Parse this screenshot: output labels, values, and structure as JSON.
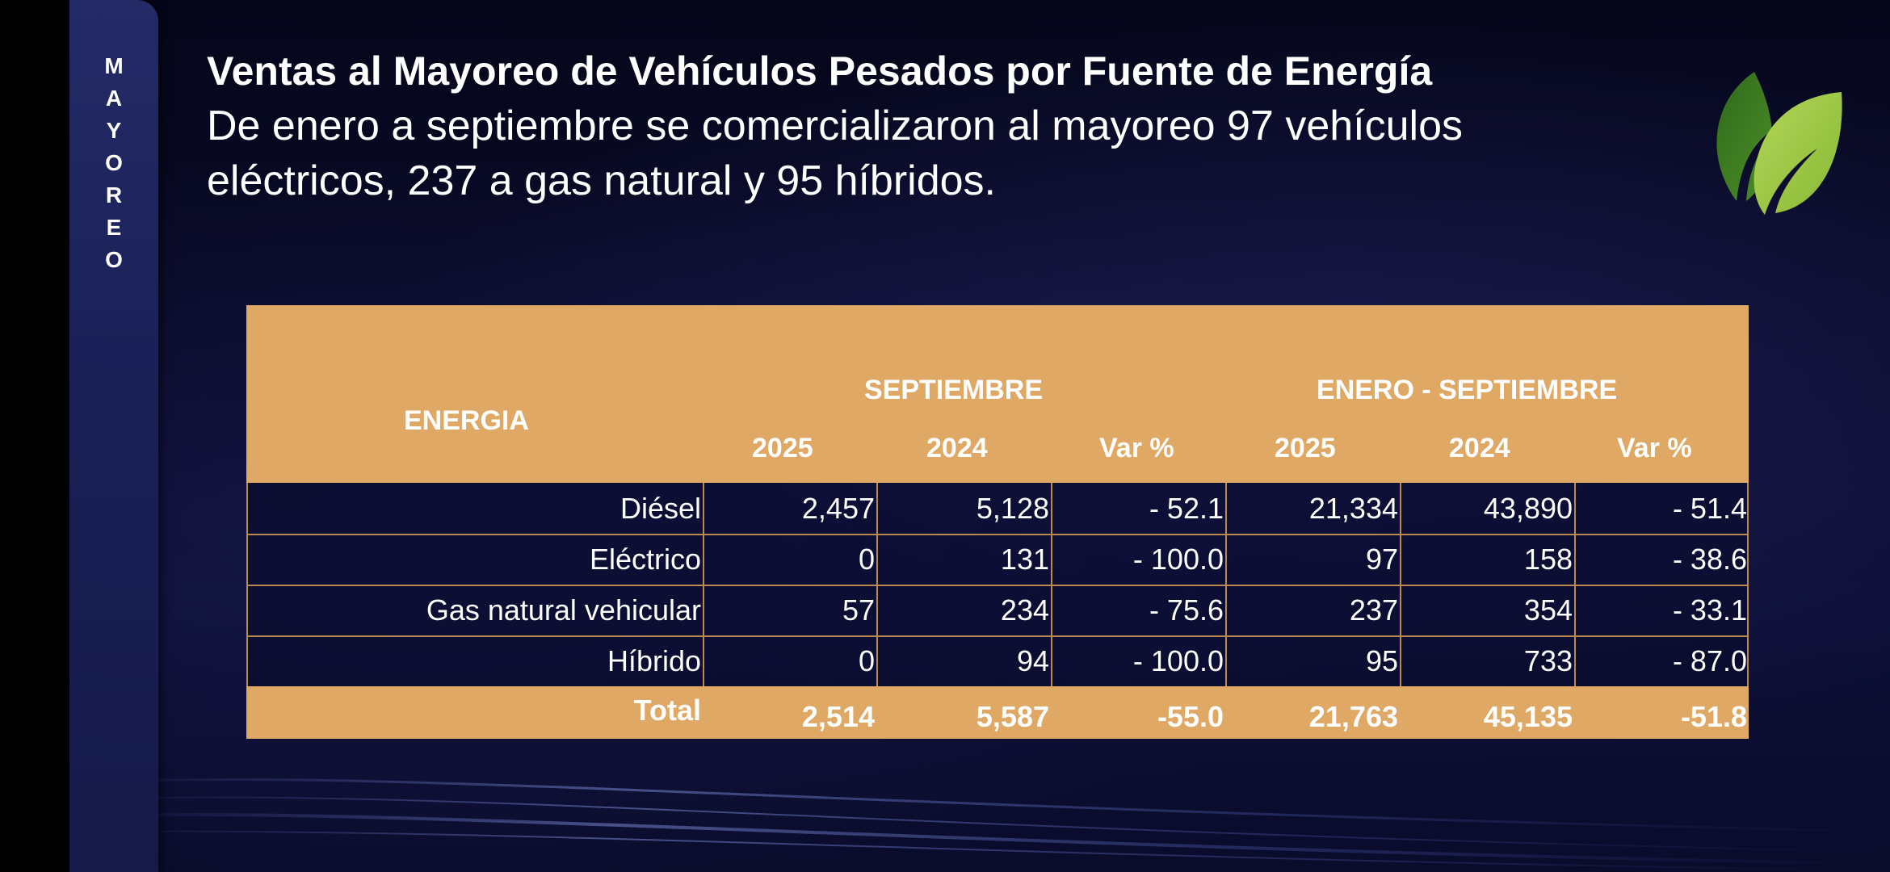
{
  "side_label": [
    "M",
    "A",
    "Y",
    "O",
    "R",
    "E",
    "O"
  ],
  "title": "Ventas al Mayoreo de Vehículos Pesados por Fuente de Energía",
  "subtitle": "De enero a septiembre se comercializaron al mayoreo 97 vehículos eléctricos, 237 a gas natural y 95 híbridos.",
  "table": {
    "energy_header": "ENERGIA",
    "group_month": "SEPTIEMBRE",
    "group_ytd": "ENERO - SEPTIEMBRE",
    "year_headers": [
      "2025",
      "2024",
      "Var %",
      "2025",
      "2024",
      "Var %"
    ],
    "rows": [
      {
        "label": "Diésel",
        "values": [
          "2,457",
          "5,128",
          "- 52.1",
          "21,334",
          "43,890",
          "- 51.4"
        ]
      },
      {
        "label": "Eléctrico",
        "values": [
          "0",
          "131",
          "- 100.0",
          "97",
          "158",
          "- 38.6"
        ]
      },
      {
        "label": "Gas natural vehicular",
        "values": [
          "57",
          "234",
          "- 75.6",
          "237",
          "354",
          "- 33.1"
        ]
      },
      {
        "label": "Híbrido",
        "values": [
          "0",
          "94",
          "- 100.0",
          "95",
          "733",
          "- 87.0"
        ]
      }
    ],
    "total": {
      "label": "Total",
      "values": [
        "2,514",
        "5,587",
        "-55.0",
        "21,763",
        "45,135",
        "-51.8"
      ]
    }
  },
  "colors": {
    "header_bg": "#dfa865",
    "grid_line": "#b88a50",
    "background": "#0a0b2a",
    "side_tab": "#1b2158",
    "leaf_dark": "#3f7d22",
    "leaf_light": "#9bc640"
  },
  "icons": {
    "logo": "leaf-icon"
  }
}
